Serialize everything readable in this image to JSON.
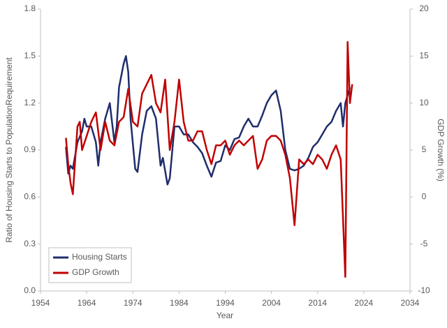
{
  "chart_data": {
    "type": "line",
    "xlabel": "Year",
    "ylabel": "Ratio of Housing Starts to PopulationRequirement",
    "y2label": "GDP Growth (%)",
    "xlim": [
      1954,
      2034
    ],
    "xticks": [
      1954,
      1964,
      1974,
      1984,
      1994,
      2004,
      2014,
      2024,
      2034
    ],
    "ylim": [
      0,
      1.8
    ],
    "yticks": [
      {
        "value": 0,
        "label": "0.0"
      },
      0.3,
      0.6,
      0.9,
      1.2,
      1.5,
      1.8
    ],
    "y2lim": [
      -10,
      20
    ],
    "y2ticks": [
      -10,
      -5,
      0,
      5,
      10,
      15,
      20
    ],
    "legend": "lower left",
    "series": [
      {
        "name": "Housing Starts",
        "color": "#1f2d6b",
        "x": [
          1959.5,
          1960,
          1960.5,
          1961,
          1962,
          1963,
          1963.5,
          1964,
          1965,
          1966,
          1966.5,
          1967,
          1968,
          1969,
          1970,
          1970.5,
          1971,
          1972,
          1972.5,
          1973,
          1973.5,
          1974.5,
          1975,
          1976,
          1977,
          1978,
          1979,
          1980,
          1980.5,
          1981.5,
          1982,
          1983,
          1984,
          1985,
          1986,
          1987,
          1988,
          1989,
          1990,
          1991,
          1992,
          1993,
          1994,
          1995,
          1996,
          1997,
          1998,
          1999,
          2000,
          2001,
          2002,
          2003,
          2004,
          2005,
          2006,
          2007,
          2008,
          2009,
          2010,
          2011,
          2012,
          2013,
          2014,
          2015,
          2016,
          2017,
          2018,
          2019,
          2019.5,
          2020,
          2021
        ],
        "values": [
          0.92,
          0.75,
          0.8,
          0.78,
          0.95,
          1.02,
          1.1,
          1.05,
          1.05,
          0.95,
          0.8,
          0.95,
          1.1,
          1.2,
          0.95,
          1.05,
          1.3,
          1.45,
          1.5,
          1.4,
          1.1,
          0.78,
          0.76,
          1.0,
          1.15,
          1.18,
          1.1,
          0.8,
          0.85,
          0.68,
          0.72,
          1.05,
          1.05,
          1.0,
          1.0,
          0.95,
          0.92,
          0.88,
          0.8,
          0.73,
          0.82,
          0.83,
          0.93,
          0.9,
          0.97,
          0.98,
          1.05,
          1.1,
          1.05,
          1.05,
          1.12,
          1.2,
          1.25,
          1.28,
          1.15,
          0.9,
          0.78,
          0.77,
          0.78,
          0.8,
          0.85,
          0.92,
          0.95,
          1.0,
          1.05,
          1.08,
          1.15,
          1.2,
          1.05,
          1.2,
          1.3
        ]
      },
      {
        "name": "GDP Growth",
        "color": "#c00000",
        "axis": "y2",
        "x": [
          1959.5,
          1960,
          1960.5,
          1961,
          1962,
          1962.5,
          1963,
          1964,
          1965,
          1966,
          1967,
          1968,
          1969,
          1970,
          1971,
          1972,
          1973,
          1974,
          1975,
          1976,
          1977,
          1978,
          1979,
          1980,
          1981,
          1982,
          1983,
          1984,
          1985,
          1986,
          1987,
          1988,
          1989,
          1990,
          1991,
          1992,
          1993,
          1994,
          1995,
          1996,
          1997,
          1998,
          1999,
          2000,
          2001,
          2002,
          2003,
          2004,
          2005,
          2006,
          2007,
          2008,
          2009,
          2010,
          2011,
          2012,
          2013,
          2014,
          2015,
          2016,
          2017,
          2018,
          2019,
          2020,
          2020.5,
          2021,
          2021.5
        ],
        "values": [
          6.3,
          3.5,
          1.5,
          0.3,
          7.5,
          8,
          5,
          6.5,
          8,
          9,
          5,
          8,
          6,
          5.5,
          8,
          8.5,
          11.5,
          8,
          7.5,
          11,
          12,
          13,
          10,
          9,
          12.5,
          5,
          8,
          12.5,
          8,
          6,
          6,
          7,
          7,
          5,
          3.5,
          5.5,
          5.5,
          6,
          4.5,
          5.5,
          6,
          5.5,
          6,
          6.5,
          3,
          4,
          6,
          6.5,
          6.5,
          6,
          4.5,
          2,
          -3,
          4,
          3.5,
          4,
          3.5,
          4.5,
          4,
          3,
          4.5,
          5.5,
          4,
          -8.5,
          16.5,
          10,
          12
        ]
      }
    ]
  }
}
